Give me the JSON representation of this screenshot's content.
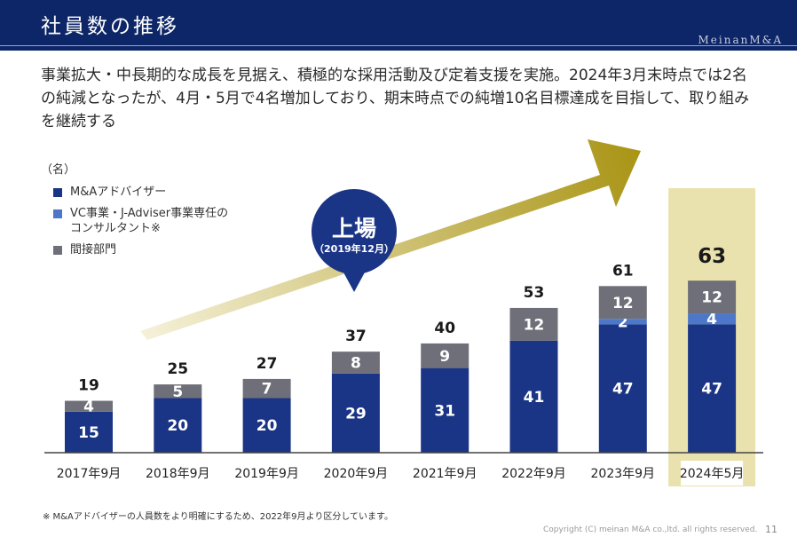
{
  "header": {
    "title": "社員数の推移",
    "brand": "MeinanM&A"
  },
  "lead": "事業拡大・中長期的な成長を見据え、積極的な採用活動及び定着支援を実施。2024年3月末時点では2名の純減となったが、4月・5月で4名増加しており、期末時点での純増10名目標達成を目指して、取り組みを継続する",
  "callout": {
    "title": "上場",
    "subtitle": "（2019年12月）"
  },
  "chart_data": {
    "type": "bar",
    "stacked": true,
    "unit_label": "（名）",
    "categories": [
      "2017年9月",
      "2018年9月",
      "2019年9月",
      "2020年9月",
      "2021年9月",
      "2022年9月",
      "2023年9月",
      "2024年5月"
    ],
    "series": [
      {
        "name": "M&Aアドバイザー",
        "values": [
          15,
          20,
          20,
          29,
          31,
          41,
          47,
          47
        ],
        "color": "#1b3586"
      },
      {
        "name": "VC事業・J-Adviser事業専任の\nコンサルタント※",
        "values": [
          0,
          0,
          0,
          0,
          0,
          0,
          2,
          4
        ],
        "color": "#4d77c9"
      },
      {
        "name": "間接部門",
        "values": [
          4,
          5,
          7,
          8,
          9,
          12,
          12,
          12
        ],
        "color": "#6f6f79"
      }
    ],
    "totals": [
      19,
      25,
      27,
      37,
      40,
      53,
      61,
      63
    ],
    "highlight_category": "2024年5月",
    "highlight_color": "#e9e2ae",
    "ylim": [
      0,
      70
    ],
    "grid": false,
    "legend_position": "top-left"
  },
  "footnote": "※ M&Aアドバイザーの人員数をより明確にするため、2022年9月より区分しています。",
  "copyright": "Copyright (C) meinan M&A co.,ltd. all rights reserved.",
  "page_number": "11"
}
